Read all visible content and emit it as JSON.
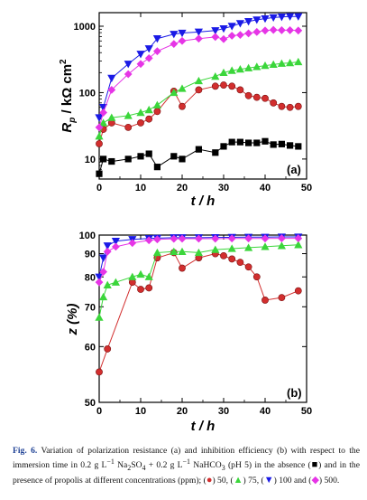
{
  "chart_data": [
    {
      "type": "scatter",
      "panel_label": "(a)",
      "ylabel_main": "R",
      "ylabel_sub": "p",
      "ylabel_rest": " / kΩ cm",
      "ylabel_sup": "2",
      "xlabel": "t / h",
      "yscale": "log",
      "xlim": [
        0,
        50
      ],
      "ylim": [
        5,
        1600
      ],
      "xticks": [
        "0",
        "10",
        "20",
        "30",
        "40",
        "50"
      ],
      "yticks": [
        {
          "label": "10",
          "value": 10
        },
        {
          "label": "100",
          "value": 100
        },
        {
          "label": "1000",
          "value": 1000
        }
      ],
      "series": [
        {
          "marker": "square",
          "color": "#000000",
          "x": [
            0,
            1,
            3,
            7,
            10,
            12,
            14,
            18,
            20,
            24,
            28,
            30,
            32,
            34,
            36,
            38,
            40,
            42,
            44,
            46,
            48
          ],
          "y": [
            6,
            10,
            9.2,
            10,
            11,
            12,
            7.6,
            11,
            10,
            14,
            12.5,
            15.5,
            18,
            18,
            17.5,
            17.5,
            18.5,
            16.5,
            16.8,
            16,
            15.5
          ]
        },
        {
          "marker": "circle",
          "color": "#d22e2e",
          "x": [
            0,
            1,
            3,
            7,
            10,
            12,
            14,
            18,
            20,
            24,
            28,
            30,
            32,
            34,
            36,
            38,
            40,
            42,
            44,
            46,
            48
          ],
          "y": [
            17,
            28,
            35,
            30,
            35,
            40,
            52,
            105,
            62,
            110,
            125,
            130,
            125,
            110,
            90,
            85,
            82,
            70,
            62,
            60,
            62
          ]
        },
        {
          "marker": "triangle-up",
          "color": "#3bd63b",
          "x": [
            0,
            1,
            3,
            7,
            10,
            12,
            14,
            18,
            20,
            24,
            28,
            30,
            32,
            34,
            36,
            38,
            40,
            42,
            44,
            46,
            48
          ],
          "y": [
            22,
            35,
            42,
            45,
            50,
            55,
            65,
            100,
            115,
            150,
            175,
            200,
            215,
            225,
            235,
            245,
            255,
            265,
            275,
            280,
            290
          ]
        },
        {
          "marker": "triangle-down",
          "color": "#1a1ae6",
          "x": [
            0,
            1,
            3,
            7,
            10,
            12,
            14,
            18,
            20,
            24,
            28,
            30,
            32,
            34,
            36,
            38,
            40,
            42,
            44,
            46,
            48
          ],
          "y": [
            42,
            60,
            165,
            270,
            380,
            460,
            650,
            760,
            790,
            820,
            860,
            920,
            1000,
            1100,
            1180,
            1250,
            1300,
            1350,
            1380,
            1400,
            1400
          ]
        },
        {
          "marker": "diamond",
          "color": "#e635e6",
          "x": [
            0,
            1,
            3,
            7,
            10,
            12,
            14,
            18,
            20,
            24,
            28,
            30,
            32,
            34,
            36,
            38,
            40,
            42,
            44,
            46,
            48
          ],
          "y": [
            30,
            50,
            110,
            190,
            270,
            330,
            420,
            540,
            600,
            650,
            690,
            640,
            720,
            740,
            780,
            820,
            860,
            880,
            870,
            870,
            860
          ]
        }
      ]
    },
    {
      "type": "scatter",
      "panel_label": "(b)",
      "ylabel": "z (%)",
      "xlabel": "t / h",
      "yscale": "reciprocal",
      "xlim": [
        0,
        50
      ],
      "ylim": [
        50,
        100
      ],
      "xticks": [
        "0",
        "10",
        "20",
        "30",
        "40",
        "50"
      ],
      "yticks": [
        {
          "label": "50",
          "value": 50
        },
        {
          "label": "60",
          "value": 60
        },
        {
          "label": "70",
          "value": 70
        },
        {
          "label": "80",
          "value": 80
        },
        {
          "label": "90",
          "value": 90
        },
        {
          "label": "100",
          "value": 100
        }
      ],
      "series": [
        {
          "marker": "circle",
          "color": "#d22e2e",
          "x": [
            0,
            2,
            8,
            10,
            12,
            14,
            18,
            20,
            24,
            28,
            30,
            32,
            34,
            36,
            38,
            40,
            44,
            48
          ],
          "y": [
            55,
            59.5,
            78,
            75.5,
            76,
            88,
            90.5,
            83.5,
            88,
            90,
            89,
            87.5,
            86,
            84,
            80,
            72,
            72.8,
            75
          ]
        },
        {
          "marker": "triangle-up",
          "color": "#3bd63b",
          "x": [
            0,
            1,
            2,
            4,
            8,
            10,
            12,
            14,
            18,
            20,
            24,
            28,
            32,
            36,
            40,
            44,
            48
          ],
          "y": [
            67,
            73,
            77,
            78,
            80,
            81,
            80,
            90.5,
            91,
            91,
            90.5,
            92,
            92.5,
            93,
            93.5,
            94,
            94.5
          ]
        },
        {
          "marker": "triangle-down",
          "color": "#1a1ae6",
          "x": [
            0,
            1,
            2,
            4,
            8,
            12,
            14,
            18,
            20,
            24,
            28,
            32,
            36,
            40,
            44,
            48
          ],
          "y": [
            80,
            88,
            94,
            96.5,
            97.5,
            98,
            98.2,
            98.5,
            98.5,
            98.5,
            98.6,
            98.7,
            98.8,
            98.8,
            98.9,
            98.9
          ]
        },
        {
          "marker": "diamond",
          "color": "#e635e6",
          "x": [
            0,
            1,
            2,
            4,
            8,
            12,
            14,
            18,
            20,
            24,
            28,
            32,
            36,
            40,
            44,
            48
          ],
          "y": [
            78,
            82,
            91,
            93.5,
            95.5,
            97,
            97.5,
            97.8,
            97.9,
            97.9,
            97.9,
            98,
            98,
            98,
            98.1,
            98.1
          ]
        }
      ]
    }
  ],
  "caption": {
    "label": "Fig. 6.",
    "text_1": " Variation of polarization resistance (a) and inhibition efficiency (b) with respect to the immersion time in 0.2 g L",
    "sup_1": "−1",
    "text_2": " Na",
    "sub_1": "2",
    "text_3": "SO",
    "sub_2": "4",
    "text_4": " + 0.2 g L",
    "sup_2": "−1",
    "text_5": " NaHCO",
    "sub_3": "3",
    "text_6": " (pH 5) in the absence (",
    "mark_absence": "■",
    "text_7": ") and in the presence of propolis at different concentrations (ppm); (",
    "mark_50": "●",
    "text_8": ") 50, (",
    "mark_75": "▲",
    "text_9": ") 75, (",
    "mark_100": "▼",
    "text_10": ") 100 and (",
    "mark_500": "◆",
    "text_11": ") 500.",
    "colors": {
      "absence": "#000000",
      "c50": "#d22e2e",
      "c75": "#3bd63b",
      "c100": "#1a1ae6",
      "c500": "#e635e6"
    }
  }
}
